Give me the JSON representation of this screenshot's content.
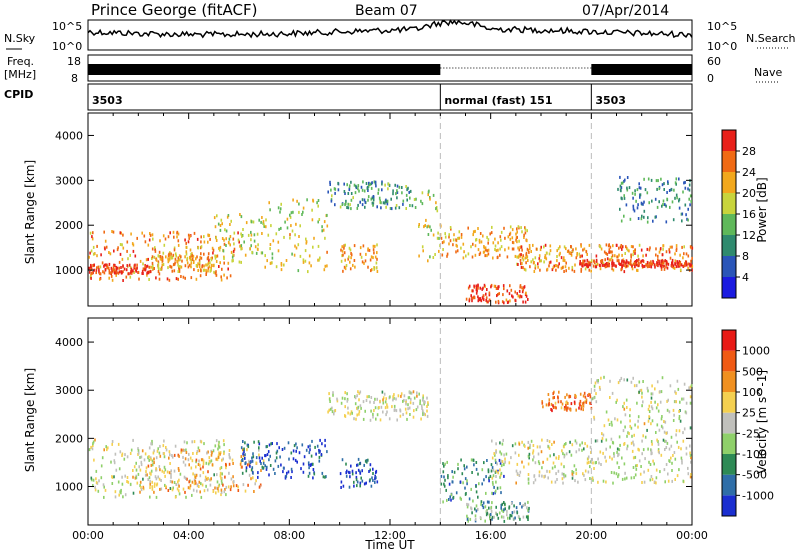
{
  "header": {
    "station": "Prince George (fitACF)",
    "beam": "Beam 07",
    "date": "07/Apr/2014"
  },
  "top_strips": {
    "nsky_label": "N.Sky",
    "nsky_ticks": [
      "10^5",
      "10^0"
    ],
    "nsearch_label": "N.Search",
    "freq_label": "Freq.",
    "freq_unit": "[MHz]",
    "freq_ticks": [
      "18",
      "8"
    ],
    "nave_label": "Nave",
    "nave_ticks": [
      "60",
      "0"
    ],
    "cpid_label": "CPID",
    "cpid_segments": [
      {
        "label": "3503",
        "start_hour": 0,
        "end_hour": 14
      },
      {
        "label": "normal (fast) 151",
        "start_hour": 14,
        "end_hour": 20
      },
      {
        "label": "3503",
        "start_hour": 20,
        "end_hour": 24
      }
    ]
  },
  "chart_data": [
    {
      "type": "heatmap",
      "panel": "power",
      "ylabel": "Slant Range [km]",
      "ylim": [
        200,
        4500
      ],
      "yticks": [
        1000,
        2000,
        3000,
        4000
      ],
      "xlim": [
        0,
        24
      ],
      "colorbar_label": "Power [dB]",
      "colorbar_ticks": [
        "4",
        "8",
        "12",
        "16",
        "20",
        "24",
        "28"
      ],
      "colorbar_colors": [
        "#1b1be0",
        "#2a55b8",
        "#2f8a6e",
        "#5fb85a",
        "#c8d43c",
        "#f2a81d",
        "#f06a14",
        "#e8201a"
      ],
      "scatter_regions": [
        {
          "t0": 0.0,
          "t1": 6.0,
          "r0": 800,
          "r1": 1900,
          "level": 0.75
        },
        {
          "t0": 0.0,
          "t1": 2.5,
          "r0": 950,
          "r1": 1150,
          "level": 0.95
        },
        {
          "t0": 2.5,
          "t1": 5.0,
          "r0": 1000,
          "r1": 1400,
          "level": 0.7
        },
        {
          "t0": 5.0,
          "t1": 7.0,
          "r0": 1200,
          "r1": 2300,
          "level": 0.55
        },
        {
          "t0": 7.0,
          "t1": 9.5,
          "r0": 1000,
          "r1": 2600,
          "level": 0.6
        },
        {
          "t0": 10.0,
          "t1": 11.5,
          "r0": 1000,
          "r1": 1600,
          "level": 0.7
        },
        {
          "t0": 13.0,
          "t1": 14.0,
          "r0": 1200,
          "r1": 2800,
          "level": 0.55
        },
        {
          "t0": 14.0,
          "t1": 17.5,
          "r0": 1300,
          "r1": 2000,
          "level": 0.7
        },
        {
          "t0": 15.0,
          "t1": 17.5,
          "r0": 300,
          "r1": 700,
          "level": 0.9
        },
        {
          "t0": 17.0,
          "t1": 24.0,
          "r0": 1000,
          "r1": 1600,
          "level": 0.75
        },
        {
          "t0": 19.5,
          "t1": 24.0,
          "r0": 1100,
          "r1": 1250,
          "level": 0.95
        },
        {
          "t0": 21.0,
          "t1": 24.0,
          "r0": 2100,
          "r1": 3100,
          "level": 0.3
        },
        {
          "t0": 9.5,
          "t1": 13.0,
          "r0": 2400,
          "r1": 3000,
          "level": 0.35
        }
      ]
    },
    {
      "type": "heatmap",
      "panel": "velocity",
      "ylabel": "Slant Range [km]",
      "xlabel": "Time UT",
      "ylim": [
        200,
        4500
      ],
      "yticks": [
        1000,
        2000,
        3000,
        4000
      ],
      "xlim": [
        0,
        24
      ],
      "xticks": [
        "00:00",
        "04:00",
        "08:00",
        "12:00",
        "16:00",
        "20:00",
        "00:00"
      ],
      "colorbar_label": "Velocity [m s^-1]",
      "colorbar_ticks": [
        "1000",
        "500",
        "100",
        "25",
        "-25",
        "-100",
        "-500",
        "-1000"
      ],
      "colorbar_colors": [
        "#1b2fd0",
        "#2f6ea8",
        "#2e8a55",
        "#8fd06a",
        "#c0c0bc",
        "#f4d050",
        "#f09020",
        "#f05a14",
        "#e81a16"
      ],
      "scatter_regions": [
        {
          "t0": 0.0,
          "t1": 5.5,
          "r0": 800,
          "r1": 2000,
          "level": 0.5
        },
        {
          "t0": 2.0,
          "t1": 7.0,
          "r0": 900,
          "r1": 1800,
          "level": 0.65
        },
        {
          "t0": 6.0,
          "t1": 9.5,
          "r0": 1200,
          "r1": 2000,
          "level": 0.15
        },
        {
          "t0": 10.0,
          "t1": 11.5,
          "r0": 1000,
          "r1": 1600,
          "level": 0.15
        },
        {
          "t0": 9.5,
          "t1": 13.5,
          "r0": 2400,
          "r1": 3000,
          "level": 0.5
        },
        {
          "t0": 14.0,
          "t1": 16.5,
          "r0": 700,
          "r1": 1600,
          "level": 0.25
        },
        {
          "t0": 15.0,
          "t1": 17.5,
          "r0": 300,
          "r1": 700,
          "level": 0.35
        },
        {
          "t0": 16.0,
          "t1": 24.0,
          "r0": 1100,
          "r1": 2000,
          "level": 0.5
        },
        {
          "t0": 20.0,
          "t1": 24.0,
          "r0": 2000,
          "r1": 3300,
          "level": 0.5
        },
        {
          "t0": 18.0,
          "t1": 20.0,
          "r0": 2600,
          "r1": 3000,
          "level": 0.8
        }
      ]
    }
  ]
}
